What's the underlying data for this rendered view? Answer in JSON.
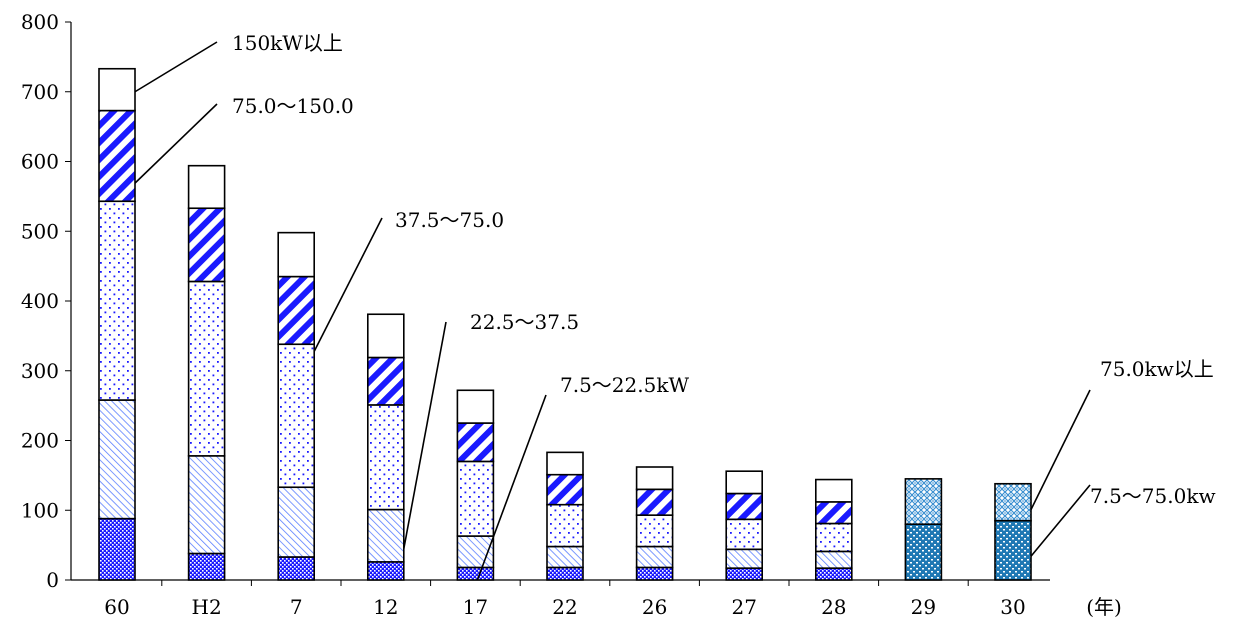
{
  "chart_data": {
    "type": "bar",
    "stacked": true,
    "categories": [
      "60",
      "H2",
      "7",
      "12",
      "17",
      "22",
      "26",
      "27",
      "28",
      "29",
      "30"
    ],
    "x_unit_label": "(年)",
    "ylim": [
      0,
      800
    ],
    "yticks": [
      0,
      100,
      200,
      300,
      400,
      500,
      600,
      700,
      800
    ],
    "grid": false,
    "series": [
      {
        "name": "7.5～22.5kW",
        "pattern": "dense-dots-blue",
        "values": [
          88,
          38,
          33,
          26,
          18,
          18,
          18,
          17,
          17,
          null,
          null
        ]
      },
      {
        "name": "22.5～37.5",
        "pattern": "thin-diagonal-blue",
        "values": [
          170,
          140,
          100,
          75,
          45,
          30,
          30,
          27,
          24,
          null,
          null
        ]
      },
      {
        "name": "37.5～75.0",
        "pattern": "sparse-dots-blue",
        "values": [
          285,
          250,
          205,
          150,
          107,
          60,
          45,
          43,
          40,
          null,
          null
        ]
      },
      {
        "name": "75.0～150.0",
        "pattern": "thick-diagonal-blue",
        "values": [
          130,
          105,
          97,
          68,
          55,
          43,
          37,
          37,
          31,
          null,
          null
        ]
      },
      {
        "name": "150kW以上",
        "pattern": "white",
        "values": [
          60,
          61,
          63,
          62,
          47,
          32,
          32,
          32,
          32,
          null,
          null
        ]
      },
      {
        "name": "7.5～75.0kw",
        "pattern": "dots-teal",
        "values": [
          null,
          null,
          null,
          null,
          null,
          null,
          null,
          null,
          null,
          80,
          85
        ]
      },
      {
        "name": "75.0kw以上",
        "pattern": "lattice-teal",
        "values": [
          null,
          null,
          null,
          null,
          null,
          null,
          null,
          null,
          null,
          65,
          53
        ]
      }
    ],
    "annotations": [
      {
        "text": "150kW以上",
        "series": 4,
        "category": 0
      },
      {
        "text": "75.0～150.0",
        "series": 3,
        "category": 0
      },
      {
        "text": "37.5～75.0",
        "series": 2,
        "category": 2
      },
      {
        "text": "22.5～37.5",
        "series": 1,
        "category": 3
      },
      {
        "text": "7.5～22.5kW",
        "series": 0,
        "category": 4
      },
      {
        "text": "75.0kw以上",
        "series": 6,
        "category": 10
      },
      {
        "text": "7.5～75.0kw",
        "series": 5,
        "category": 10
      }
    ]
  }
}
